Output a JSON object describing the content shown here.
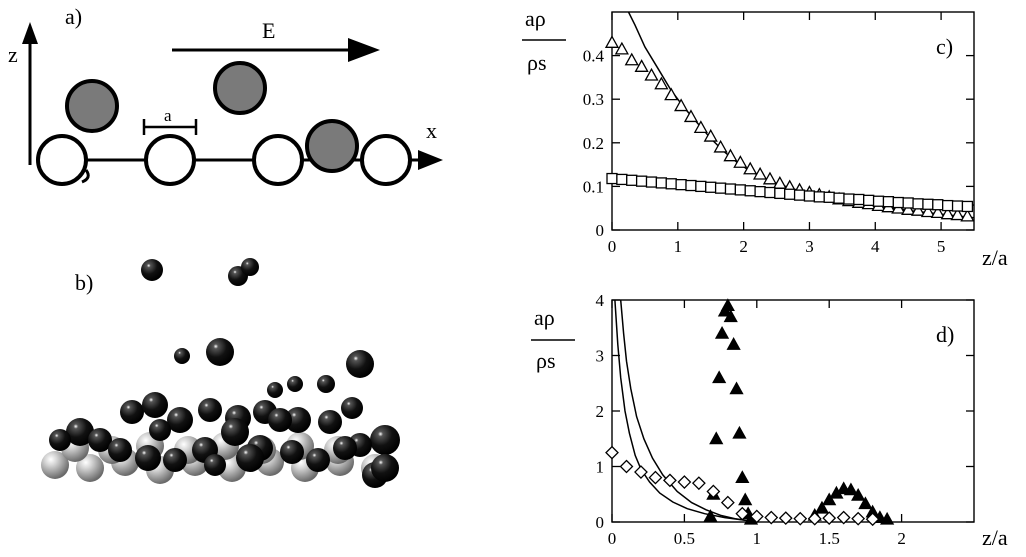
{
  "panel_a": {
    "label": "a)",
    "axis_z": "z",
    "axis_x": "x",
    "field_label": "E",
    "spacing_label": "a"
  },
  "panel_b": {
    "label": "b)"
  },
  "colors": {
    "adsorbed": "#7a7a7a",
    "substrate": "#ffffff",
    "sphere_dark": "#0d0d0d",
    "sphere_light": "#b9b9b9"
  },
  "chart_data": [
    {
      "type": "scatter",
      "panel": "c)",
      "ylabel_num": "aρ",
      "ylabel_den": "ρs",
      "xlabel": "z/a",
      "xlim": [
        0,
        5.5
      ],
      "ylim": [
        0,
        0.5
      ],
      "xticks": [
        "0",
        "1",
        "2",
        "3",
        "4",
        "5"
      ],
      "yticks": [
        "0",
        "0.1",
        "0.2",
        "0.3",
        "0.4"
      ],
      "series": [
        {
          "marker": "triangle-open",
          "x": [
            0,
            0.15,
            0.3,
            0.45,
            0.6,
            0.75,
            0.9,
            1.05,
            1.2,
            1.35,
            1.5,
            1.65,
            1.8,
            1.95,
            2.1,
            2.25,
            2.4,
            2.55,
            2.7,
            2.85,
            3.0,
            3.15,
            3.3,
            3.45,
            3.6,
            3.75,
            3.9,
            4.05,
            4.2,
            4.35,
            4.5,
            4.65,
            4.8,
            4.95,
            5.1,
            5.25,
            5.4
          ],
          "y": [
            0.43,
            0.415,
            0.39,
            0.375,
            0.355,
            0.335,
            0.31,
            0.285,
            0.26,
            0.235,
            0.215,
            0.19,
            0.17,
            0.155,
            0.14,
            0.128,
            0.117,
            0.107,
            0.099,
            0.092,
            0.086,
            0.081,
            0.076,
            0.071,
            0.067,
            0.063,
            0.06,
            0.056,
            0.053,
            0.05,
            0.047,
            0.045,
            0.042,
            0.04,
            0.037,
            0.035,
            0.032
          ]
        },
        {
          "marker": "square-open",
          "x": [
            0,
            0.15,
            0.3,
            0.45,
            0.6,
            0.75,
            0.9,
            1.05,
            1.2,
            1.35,
            1.5,
            1.65,
            1.8,
            1.95,
            2.1,
            2.25,
            2.4,
            2.55,
            2.7,
            2.85,
            3.0,
            3.15,
            3.3,
            3.45,
            3.6,
            3.75,
            3.9,
            4.05,
            4.2,
            4.35,
            4.5,
            4.65,
            4.8,
            4.95,
            5.1,
            5.25,
            5.4
          ],
          "y": [
            0.118,
            0.116,
            0.114,
            0.112,
            0.11,
            0.108,
            0.106,
            0.104,
            0.102,
            0.1,
            0.098,
            0.096,
            0.094,
            0.092,
            0.09,
            0.088,
            0.086,
            0.084,
            0.082,
            0.08,
            0.078,
            0.076,
            0.075,
            0.073,
            0.071,
            0.07,
            0.068,
            0.066,
            0.065,
            0.063,
            0.062,
            0.06,
            0.059,
            0.058,
            0.056,
            0.055,
            0.054
          ]
        }
      ],
      "lines": [
        {
          "x": [
            0.25,
            0.35,
            0.5,
            0.7,
            0.9,
            1.1,
            1.3,
            1.5,
            1.7,
            1.9,
            2.1,
            2.3,
            2.5,
            2.8,
            3.1,
            3.4,
            3.7,
            4.0,
            4.3,
            4.6,
            4.9,
            5.2,
            5.5
          ],
          "y": [
            0.5,
            0.47,
            0.42,
            0.37,
            0.32,
            0.28,
            0.245,
            0.21,
            0.18,
            0.155,
            0.135,
            0.12,
            0.107,
            0.092,
            0.08,
            0.07,
            0.062,
            0.055,
            0.049,
            0.043,
            0.038,
            0.033,
            0.028
          ]
        },
        {
          "x": [
            0,
            0.5,
            1.0,
            1.5,
            2.0,
            2.5,
            3.0,
            3.5,
            4.0,
            4.5,
            5.0,
            5.5
          ],
          "y": [
            0.112,
            0.107,
            0.102,
            0.097,
            0.092,
            0.087,
            0.082,
            0.077,
            0.072,
            0.067,
            0.062,
            0.057
          ]
        }
      ]
    },
    {
      "type": "scatter",
      "panel": "d)",
      "ylabel_num": "aρ",
      "ylabel_den": "ρs",
      "xlabel": "z/a",
      "xlim": [
        0,
        2.5
      ],
      "ylim": [
        0,
        4
      ],
      "xticks": [
        "0",
        "0.5",
        "1",
        "1.5",
        "2"
      ],
      "yticks": [
        "0",
        "1",
        "2",
        "3",
        "4"
      ],
      "series": [
        {
          "marker": "triangle-filled",
          "x": [
            0.68,
            0.7,
            0.72,
            0.74,
            0.76,
            0.78,
            0.8,
            0.82,
            0.84,
            0.86,
            0.88,
            0.9,
            0.92,
            0.94,
            0.96,
            1.4,
            1.45,
            1.5,
            1.55,
            1.6,
            1.65,
            1.7,
            1.75,
            1.8,
            1.85,
            1.9
          ],
          "y": [
            0.1,
            0.5,
            1.5,
            2.6,
            3.4,
            3.8,
            3.9,
            3.7,
            3.2,
            2.4,
            1.6,
            0.8,
            0.4,
            0.15,
            0.05,
            0.12,
            0.25,
            0.4,
            0.52,
            0.6,
            0.58,
            0.48,
            0.33,
            0.18,
            0.08,
            0.05
          ]
        },
        {
          "marker": "diamond-open",
          "x": [
            0.0,
            0.1,
            0.2,
            0.3,
            0.4,
            0.5,
            0.6,
            0.7,
            0.8,
            0.9,
            1.0,
            1.1,
            1.2,
            1.3,
            1.4,
            1.5,
            1.6,
            1.7,
            1.8
          ],
          "y": [
            1.25,
            1.0,
            0.9,
            0.8,
            0.75,
            0.72,
            0.7,
            0.55,
            0.35,
            0.15,
            0.1,
            0.08,
            0.07,
            0.06,
            0.06,
            0.07,
            0.08,
            0.06,
            0.05
          ]
        }
      ],
      "lines": [
        {
          "x": [
            0.02,
            0.04,
            0.06,
            0.09,
            0.12,
            0.16,
            0.2,
            0.26,
            0.33,
            0.42,
            0.52,
            0.64,
            0.78,
            0.92,
            1.0
          ],
          "y": [
            4.0,
            3.2,
            2.6,
            2.0,
            1.6,
            1.2,
            0.95,
            0.72,
            0.52,
            0.36,
            0.24,
            0.15,
            0.08,
            0.03,
            0.0
          ]
        },
        {
          "x": [
            0.06,
            0.08,
            0.1,
            0.13,
            0.17,
            0.22,
            0.28,
            0.35,
            0.45,
            0.55,
            0.65,
            0.75,
            0.85,
            0.95
          ],
          "y": [
            4.0,
            3.4,
            2.9,
            2.4,
            1.9,
            1.5,
            1.15,
            0.85,
            0.55,
            0.35,
            0.22,
            0.12,
            0.06,
            0.02
          ]
        }
      ]
    }
  ]
}
